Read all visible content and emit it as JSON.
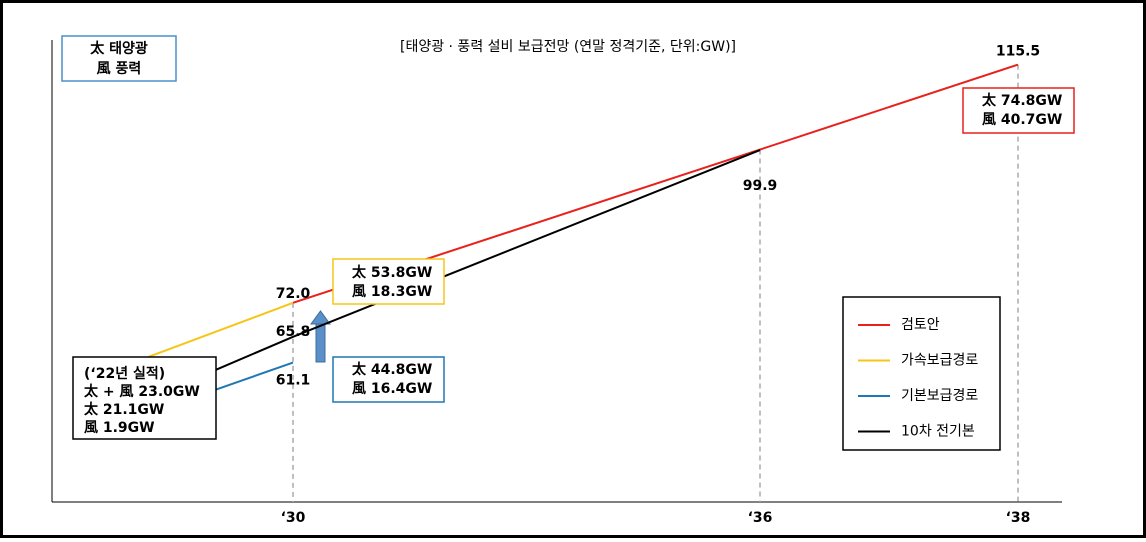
{
  "chart_data": {
    "type": "line",
    "title": "[태양광 · 풍력 설비 보급전망 (연말 정격기준, 단위:GW)]",
    "categories": [
      null,
      "‘30",
      "‘36",
      "‘38"
    ],
    "ylim": [
      36,
      120
    ],
    "series": [
      {
        "name": "검토안",
        "color": "#e8211c",
        "values": [
          null,
          72.0,
          100.0,
          115.5
        ],
        "value_labels": [
          null,
          null,
          null,
          "115.5"
        ]
      },
      {
        "name": "가속보급경로",
        "color": "#f5c518",
        "values": [
          62.1,
          72.0,
          null,
          null
        ],
        "value_labels": [
          null,
          "72.0",
          null,
          null
        ]
      },
      {
        "name": "기본보급경로",
        "color": "#1f77b4",
        "values": [
          56.1,
          61.1,
          null,
          null
        ],
        "value_labels": [
          null,
          "61.1",
          null,
          null
        ]
      },
      {
        "name": "10차 전기본",
        "color": "#000000",
        "values": [
          59.7,
          65.8,
          99.9,
          null
        ],
        "value_labels": [
          null,
          "65.8",
          "99.9",
          null
        ]
      }
    ],
    "legend": "lower right",
    "annotations": [
      {
        "lines": [
          "太 태양광",
          "風 풍력"
        ],
        "color": "#4a90c8"
      },
      {
        "lines": [
          "(‘22년 실적)",
          "太 + 風 23.0GW",
          "太 21.1GW",
          "風 1.9GW"
        ],
        "color": "#000000"
      },
      {
        "lines": [
          "太 53.8GW",
          "風 18.3GW"
        ],
        "color": "#f5c518"
      },
      {
        "lines": [
          "太 44.8GW",
          "風 16.4GW"
        ],
        "color": "#1f77b4"
      },
      {
        "lines": [
          "太 74.8GW",
          "風 40.7GW"
        ],
        "color": "#e8211c"
      }
    ]
  }
}
